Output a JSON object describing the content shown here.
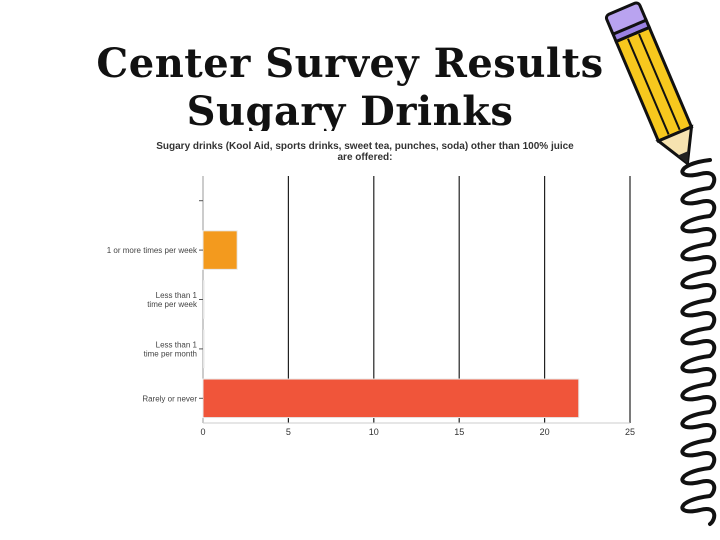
{
  "slide": {
    "title_line1": "Center Survey Results",
    "title_line2": "Sugary Drinks"
  },
  "decor": {
    "pencil_icon": "pencil-icon",
    "squiggle_icon": "squiggle-border-icon"
  },
  "chart_data": {
    "type": "bar",
    "orientation": "horizontal",
    "title_line1": "Sugary drinks (Kool Aid, sports drinks, sweet tea, punches, soda) other than 100% juice",
    "title_line2": "are offered:",
    "categories": [
      "",
      "1 or more times per week",
      "Less than 1 time per week",
      "Less than 1 time per month",
      "Rarely or never"
    ],
    "category_lines": [
      [
        ""
      ],
      [
        "1 or more times per week"
      ],
      [
        "Less than 1",
        "time per week"
      ],
      [
        "Less than 1",
        "time per month"
      ],
      [
        "Rarely or never"
      ]
    ],
    "values": [
      0,
      2,
      0,
      0,
      22
    ],
    "bar_colors": [
      "#f39a1e",
      "#f39a1e",
      "#f39a1e",
      "#f39a1e",
      "#f0553a"
    ],
    "xlim": [
      0,
      25
    ],
    "xticks": [
      0,
      5,
      10,
      15,
      20,
      25
    ],
    "grid": true,
    "legend": "none"
  }
}
